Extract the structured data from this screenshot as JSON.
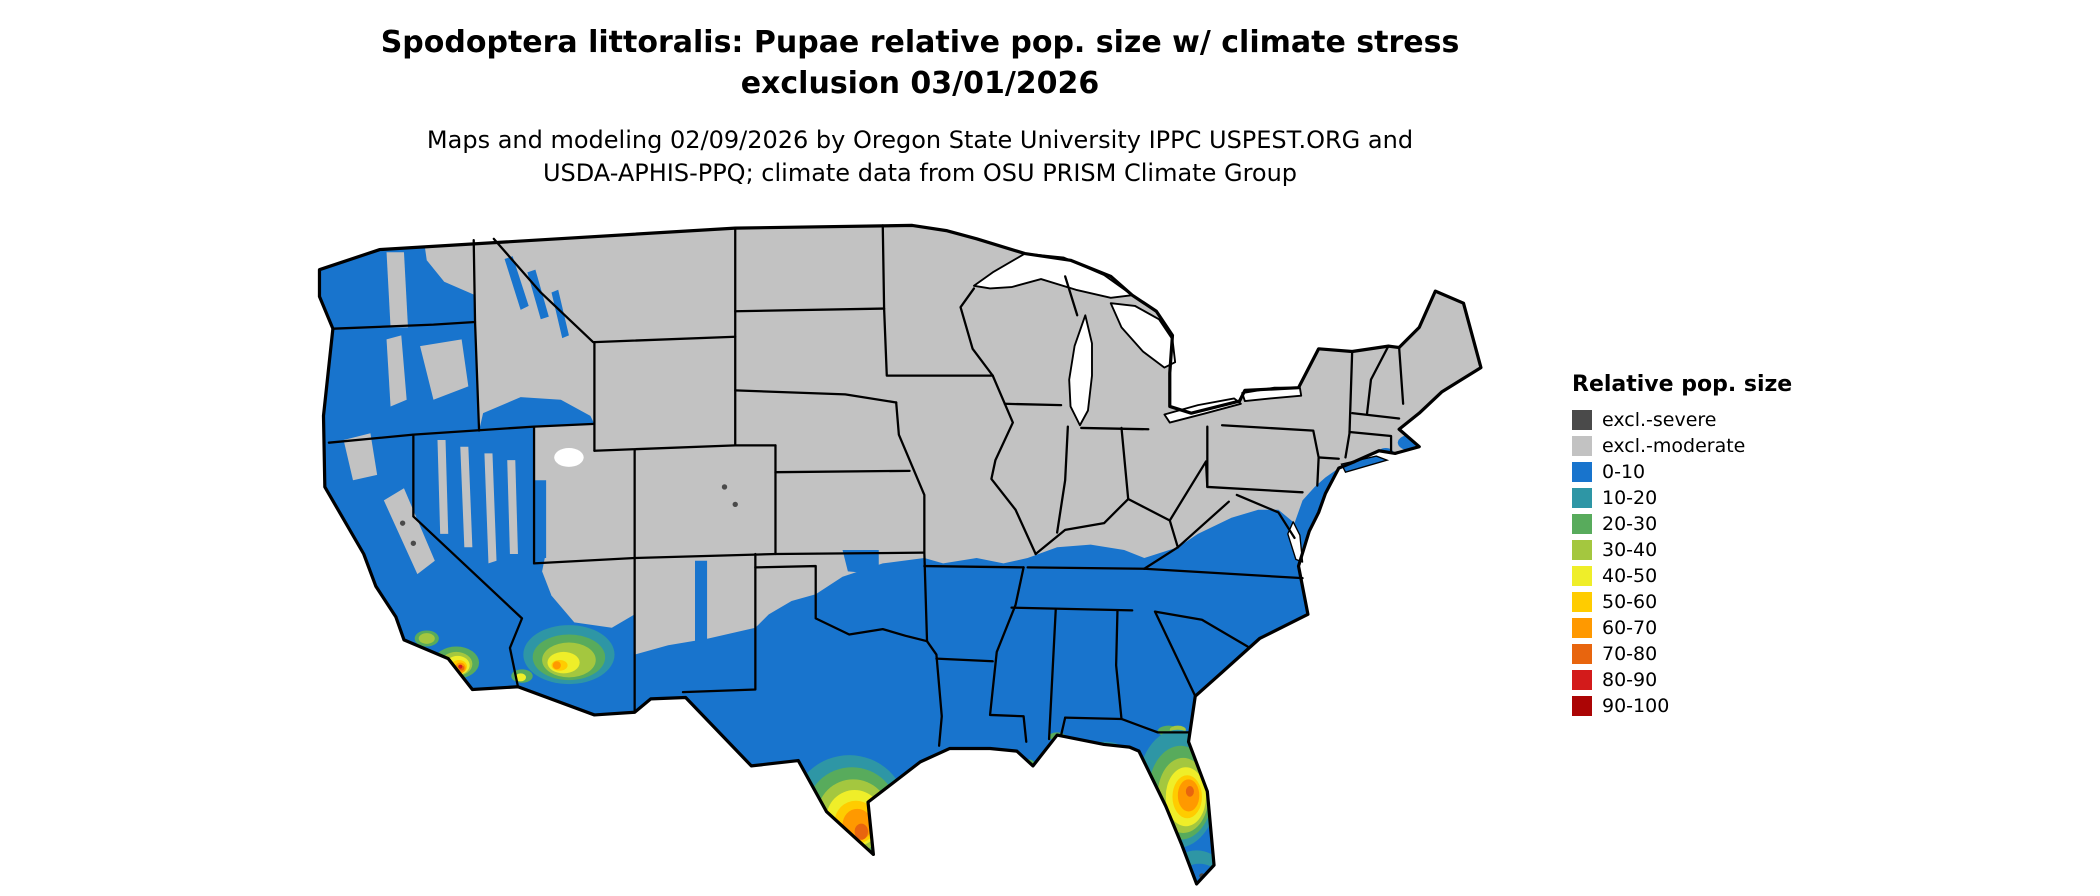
{
  "title": {
    "line1": "Spodoptera littoralis: Pupae relative pop. size w/ climate stress",
    "line2": "exclusion 03/01/2026"
  },
  "subtitle": {
    "line1": "Maps and modeling 02/09/2026 by Oregon State University IPPC USPEST.ORG and",
    "line2": "USDA-APHIS-PPQ; climate data from OSU PRISM Climate Group"
  },
  "legend": {
    "title": "Relative pop. size",
    "items": [
      {
        "key": "excl_severe",
        "label": "excl.-severe",
        "color": "#4a4a4a"
      },
      {
        "key": "excl_moderate",
        "label": "excl.-moderate",
        "color": "#c2c2c2"
      },
      {
        "key": "b0_10",
        "label": "0-10",
        "color": "#1874cd"
      },
      {
        "key": "b10_20",
        "label": "10-20",
        "color": "#2e96a5"
      },
      {
        "key": "b20_30",
        "label": "20-30",
        "color": "#58ab5c"
      },
      {
        "key": "b30_40",
        "label": "30-40",
        "color": "#a4c73f"
      },
      {
        "key": "b40_50",
        "label": "40-50",
        "color": "#efee29"
      },
      {
        "key": "b50_60",
        "label": "50-60",
        "color": "#ffcc00"
      },
      {
        "key": "b60_70",
        "label": "60-70",
        "color": "#ff9900"
      },
      {
        "key": "b70_80",
        "label": "70-80",
        "color": "#e8650e"
      },
      {
        "key": "b80_90",
        "label": "80-90",
        "color": "#d31b1b"
      },
      {
        "key": "b90_100",
        "label": "90-100",
        "color": "#ab0505"
      }
    ]
  },
  "map": {
    "water_color": "#ffffff",
    "border_color": "#000000",
    "background_color": "#ffffff"
  }
}
